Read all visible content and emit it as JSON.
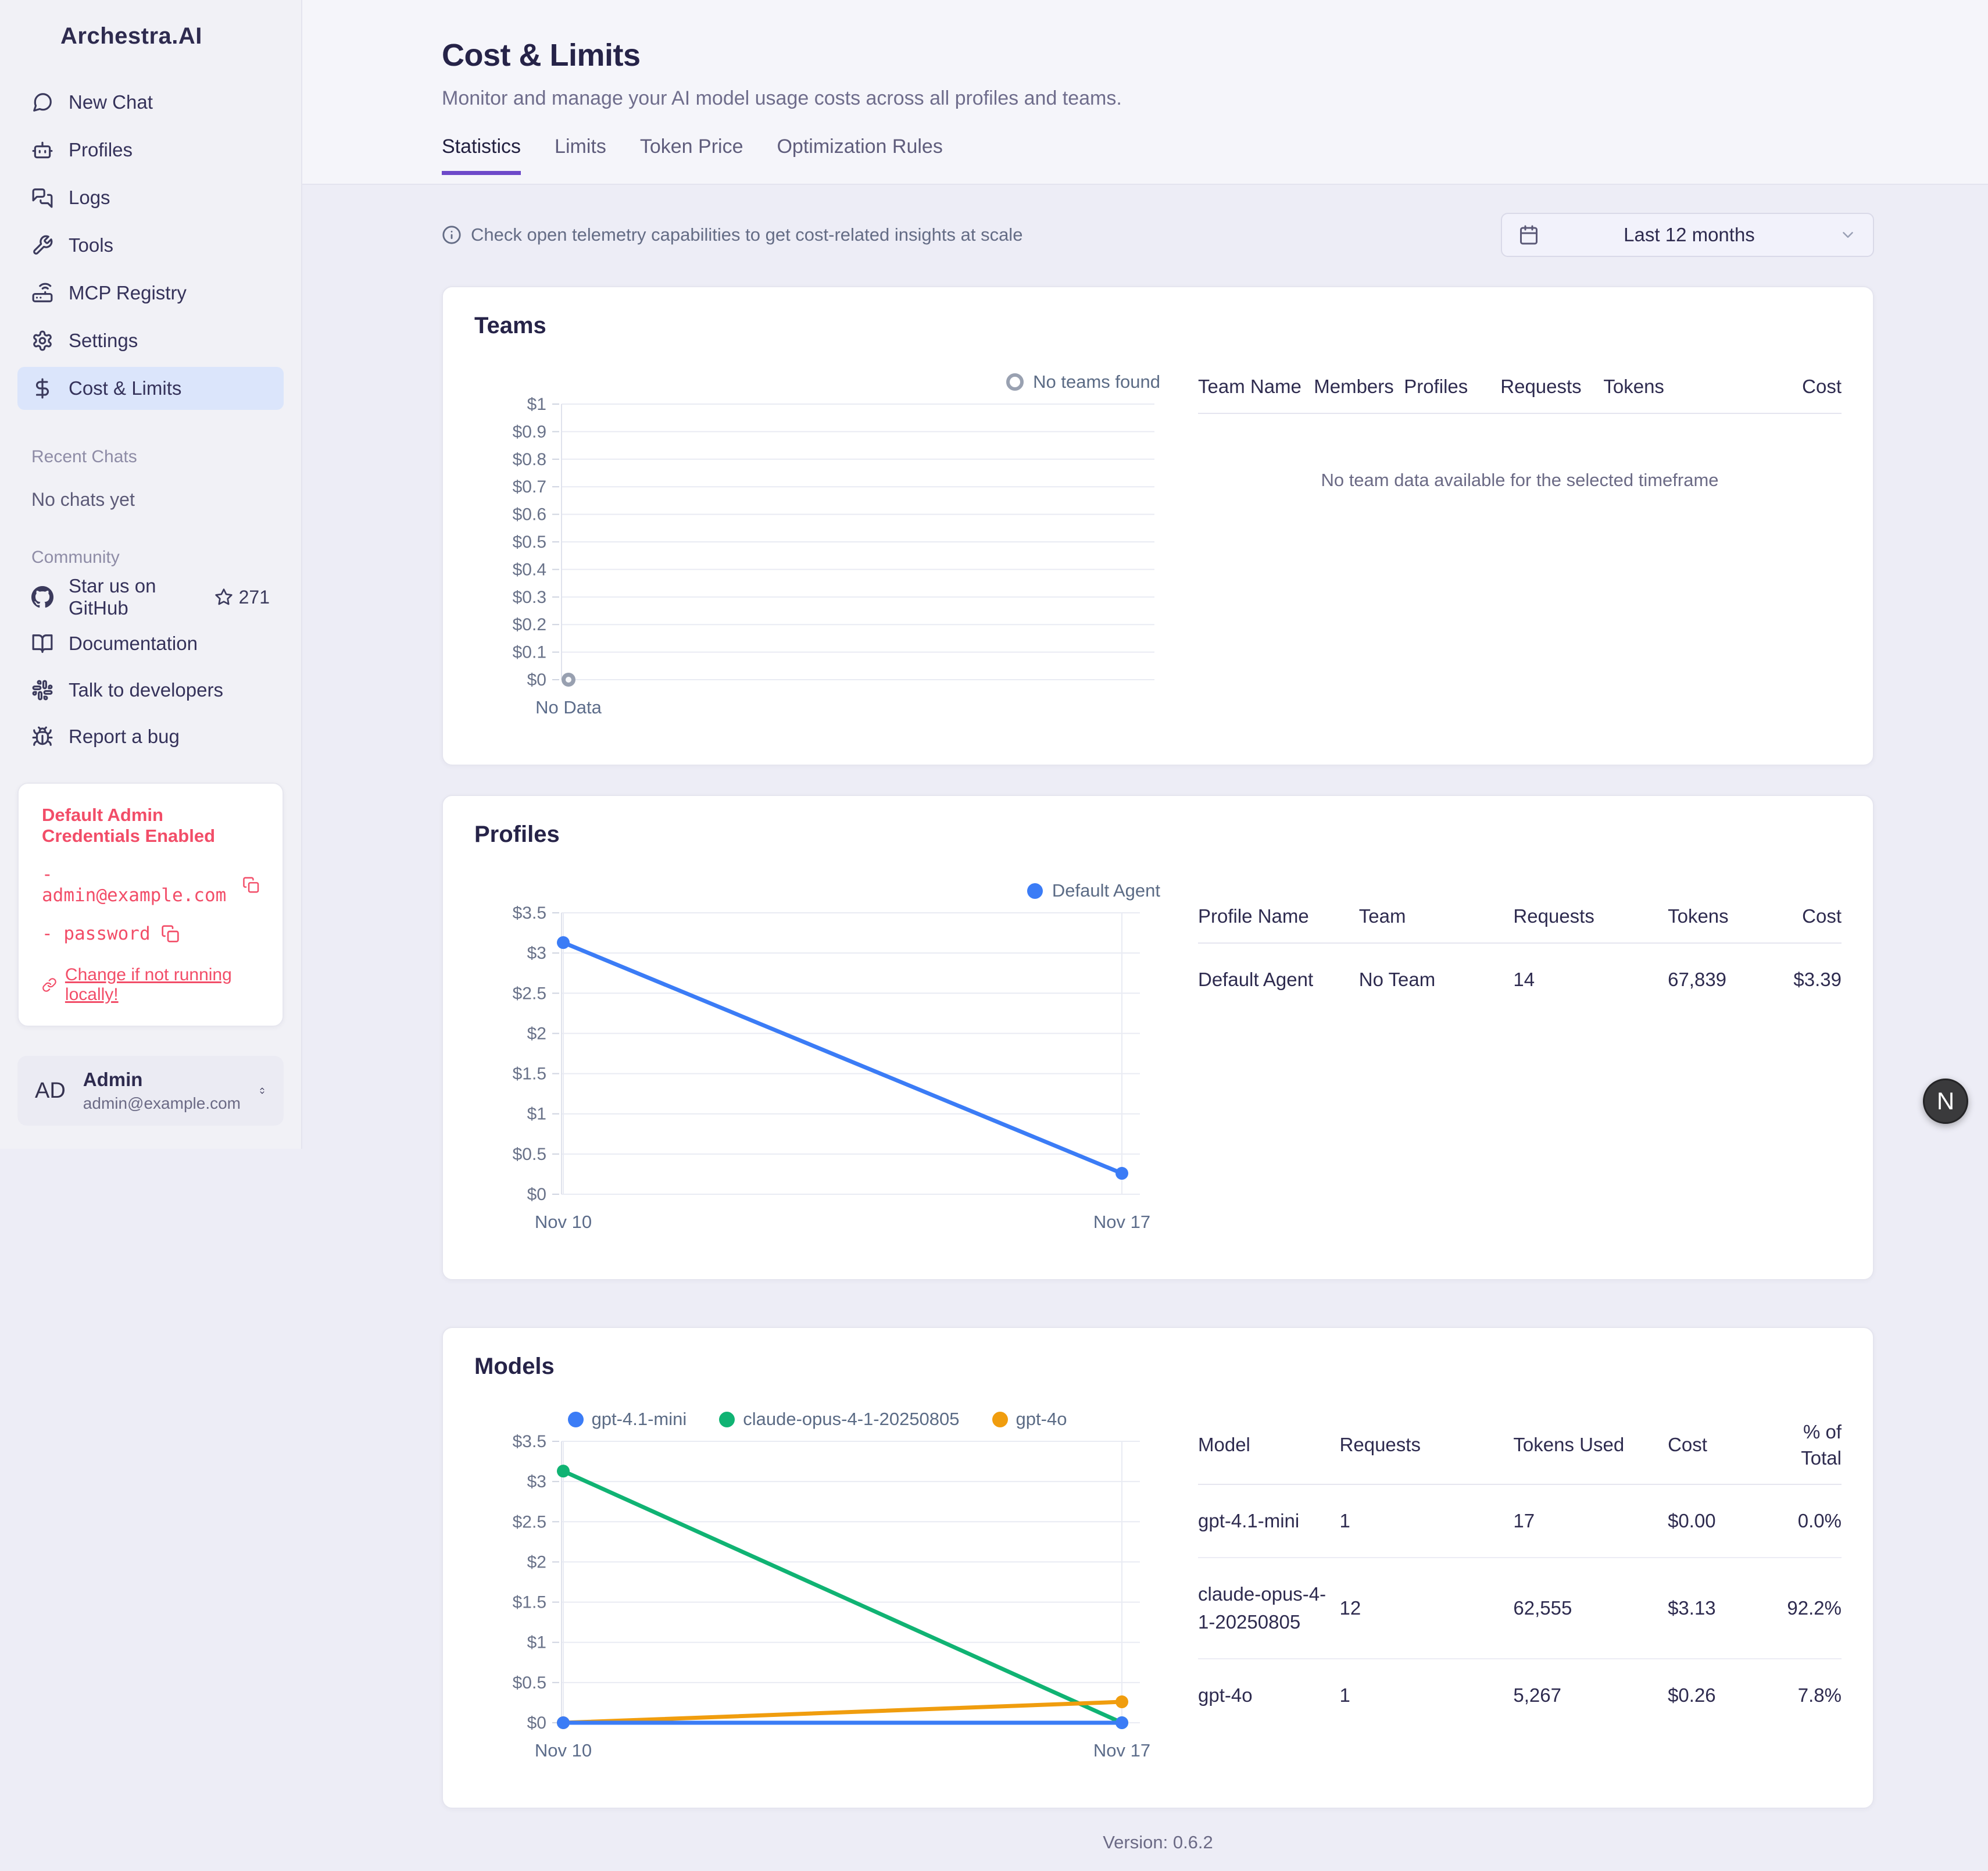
{
  "app": {
    "logo": "Archestra.AI",
    "version": "Version: 0.6.2",
    "floating_button": "N"
  },
  "sidebar": {
    "nav": [
      {
        "label": "New Chat"
      },
      {
        "label": "Profiles"
      },
      {
        "label": "Logs"
      },
      {
        "label": "Tools"
      },
      {
        "label": "MCP Registry"
      },
      {
        "label": "Settings"
      },
      {
        "label": "Cost & Limits",
        "active": true
      }
    ],
    "recent_chats_title": "Recent Chats",
    "recent_chats_empty": "No chats yet",
    "community_title": "Community",
    "community": [
      {
        "label": "Star us on GitHub",
        "badge": "271"
      },
      {
        "label": "Documentation"
      },
      {
        "label": "Talk to developers"
      },
      {
        "label": "Report a bug"
      }
    ],
    "credentials": {
      "title": "Default Admin Credentials Enabled",
      "email": "admin@example.com",
      "password": "password",
      "link": "Change if not running locally!"
    },
    "user": {
      "initials": "AD",
      "name": "Admin",
      "email": "admin@example.com"
    }
  },
  "header": {
    "title": "Cost & Limits",
    "subtitle": "Monitor and manage your AI model usage costs across all profiles and teams.",
    "tabs": [
      {
        "label": "Statistics",
        "active": true
      },
      {
        "label": "Limits"
      },
      {
        "label": "Token Price"
      },
      {
        "label": "Optimization Rules"
      }
    ]
  },
  "toolbar": {
    "info": "Check open telemetry capabilities to get cost-related insights at scale",
    "timeframe": "Last 12 months"
  },
  "teams": {
    "title": "Teams",
    "legend": "No teams found",
    "table_headers": [
      "Team Name",
      "Members",
      "Profiles",
      "Requests",
      "Tokens",
      "Cost"
    ],
    "empty_message": "No team data available for the selected timeframe"
  },
  "profiles": {
    "title": "Profiles",
    "legend": "Default Agent",
    "table_headers": [
      "Profile Name",
      "Team",
      "Requests",
      "Tokens",
      "Cost"
    ],
    "rows": [
      [
        "Default Agent",
        "No Team",
        "14",
        "67,839",
        "$3.39"
      ]
    ]
  },
  "models": {
    "title": "Models",
    "table_headers": [
      "Model",
      "Requests",
      "Tokens Used",
      "Cost",
      "% of Total"
    ],
    "rows": [
      [
        "gpt-4.1-mini",
        "1",
        "17",
        "$0.00",
        "0.0%"
      ],
      [
        "claude-opus-4-1-20250805",
        "12",
        "62,555",
        "$3.13",
        "92.2%"
      ],
      [
        "gpt-4o",
        "1",
        "5,267",
        "$0.26",
        "7.8%"
      ]
    ]
  },
  "colors": {
    "accent": "#6d49c9",
    "blue": "#3b7cf6",
    "green": "#10b373",
    "orange": "#f09d0e",
    "red": "#f24d68",
    "empty_point_gray": "#98a0b0"
  },
  "chart_data": [
    {
      "id": "teams-cost",
      "type": "line",
      "mount": "chart-teams",
      "title": "Teams",
      "legend_entries": [
        "No teams found"
      ],
      "legend_position": "top-right",
      "x_categories": [],
      "ylim": [
        0,
        1
      ],
      "ymax": 1,
      "ytick_step": 0.1,
      "series": [],
      "empty_point_value": 0,
      "x_axis_label": "No Data",
      "grid": true
    },
    {
      "id": "profiles-cost",
      "type": "line",
      "mount": "chart-profiles",
      "title": "Profiles",
      "legend_position": "top-right",
      "x_categories": [
        "Nov 10",
        "Nov 17"
      ],
      "ylim": [
        0,
        3.5
      ],
      "ymax": 3.5,
      "ytick_step": 0.5,
      "series": [
        {
          "name": "Default Agent",
          "color": "#3b7cf6",
          "values": [
            3.13,
            0.26
          ]
        }
      ],
      "grid": true
    },
    {
      "id": "models-cost",
      "type": "line",
      "mount": "chart-models",
      "title": "Models",
      "legend_position": "top-center",
      "x_categories": [
        "Nov 10",
        "Nov 17"
      ],
      "ylim": [
        0,
        3.5
      ],
      "ymax": 3.5,
      "ytick_step": 0.5,
      "series": [
        {
          "name": "gpt-4.1-mini",
          "color": "#3b7cf6",
          "values": [
            0,
            0
          ]
        },
        {
          "name": "claude-opus-4-1-20250805",
          "color": "#10b373",
          "values": [
            3.13,
            0
          ]
        },
        {
          "name": "gpt-4o",
          "color": "#f09d0e",
          "values": [
            0,
            0.26
          ]
        }
      ],
      "draw_order": [
        1,
        2,
        0
      ],
      "grid": true
    }
  ]
}
